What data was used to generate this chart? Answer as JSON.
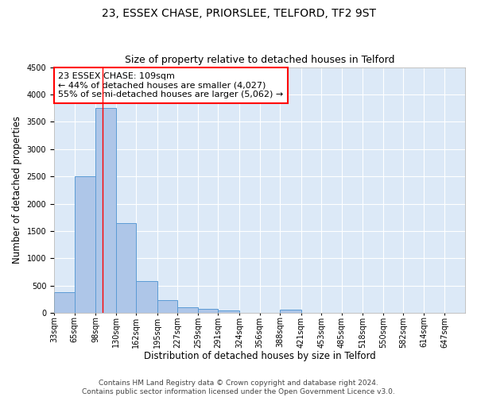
{
  "title": "23, ESSEX CHASE, PRIORSLEE, TELFORD, TF2 9ST",
  "subtitle": "Size of property relative to detached houses in Telford",
  "xlabel": "Distribution of detached houses by size in Telford",
  "ylabel": "Number of detached properties",
  "footer_line1": "Contains HM Land Registry data © Crown copyright and database right 2024.",
  "footer_line2": "Contains public sector information licensed under the Open Government Licence v3.0.",
  "annotation_line1": "23 ESSEX CHASE: 109sqm",
  "annotation_line2": "← 44% of detached houses are smaller (4,027)",
  "annotation_line3": "55% of semi-detached houses are larger (5,062) →",
  "bar_edges": [
    33,
    65,
    98,
    130,
    162,
    195,
    227,
    259,
    291,
    324,
    356,
    388,
    421,
    453,
    485,
    518,
    550,
    582,
    614,
    647,
    679
  ],
  "bar_heights": [
    375,
    2500,
    3750,
    1640,
    590,
    230,
    110,
    70,
    40,
    0,
    0,
    60,
    0,
    0,
    0,
    0,
    0,
    0,
    0,
    0
  ],
  "bar_color": "#aec6e8",
  "bar_edge_color": "#5b9bd5",
  "red_line_x": 109,
  "ylim": [
    0,
    4500
  ],
  "yticks": [
    0,
    500,
    1000,
    1500,
    2000,
    2500,
    3000,
    3500,
    4000,
    4500
  ],
  "background_color": "#dce9f7",
  "grid_color": "#ffffff",
  "title_fontsize": 10,
  "subtitle_fontsize": 9,
  "axis_label_fontsize": 8.5,
  "tick_fontsize": 7,
  "annotation_fontsize": 8,
  "footer_fontsize": 6.5
}
